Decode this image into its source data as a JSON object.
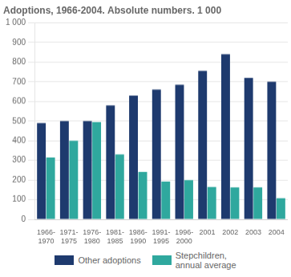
{
  "chart_data": {
    "type": "bar",
    "title": "Adoptions, 1966-2004. Absolute numbers. 1 000",
    "categories": [
      "1966-\n1970",
      "1971-\n1975",
      "1976-\n1980",
      "1981-\n1985",
      "1986-\n1990",
      "1991-\n1995",
      "1996-\n2000",
      "2001",
      "2002",
      "2003",
      "2004"
    ],
    "series": [
      {
        "name": "Other adoptions",
        "color": "#1e3a6e",
        "values": [
          490,
          500,
          500,
          580,
          630,
          660,
          685,
          755,
          840,
          720,
          700
        ]
      },
      {
        "name": "Stepchildren,\nannual average",
        "color": "#2fa89e",
        "values": [
          315,
          400,
          495,
          330,
          242,
          192,
          200,
          165,
          163,
          163,
          108
        ]
      }
    ],
    "ylim": [
      0,
      1000
    ],
    "yticks": [
      0,
      100,
      200,
      300,
      400,
      500,
      600,
      700,
      800,
      900,
      {
        "value": 1000,
        "label": "1 000"
      }
    ],
    "grid": true,
    "legend": "bottom"
  }
}
